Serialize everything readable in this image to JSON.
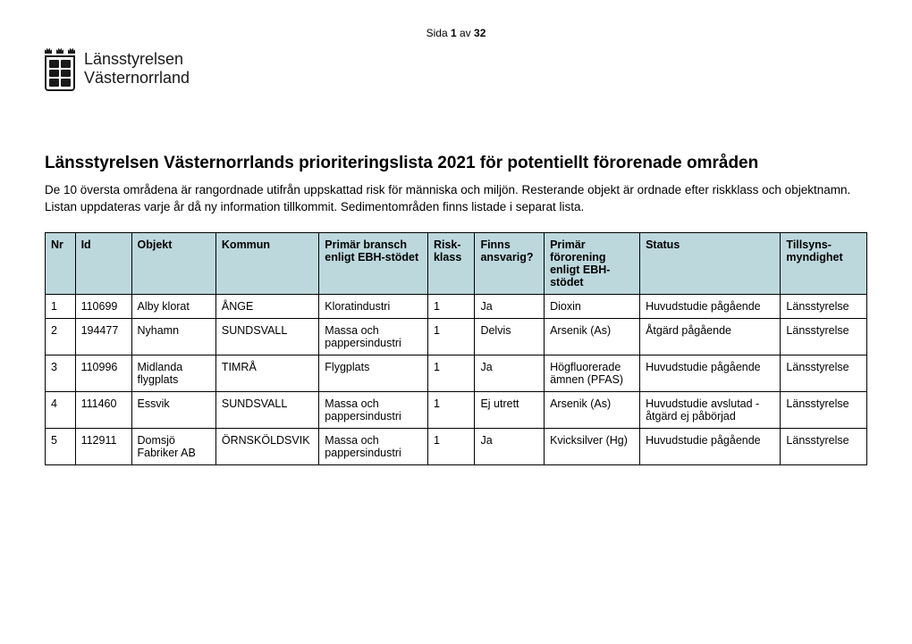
{
  "pagenum": {
    "prefix": "Sida ",
    "current": "1",
    "sep": " av ",
    "total": "32"
  },
  "logo": {
    "line1": "Länsstyrelsen",
    "line2": "Västernorrland"
  },
  "title": "Länsstyrelsen Västernorrlands prioriteringslista 2021 för potentiellt förorenade områden",
  "intro": "De 10 översta områdena är rangordnade utifrån uppskattad risk för människa och miljön. Resterande objekt är ordnade efter riskklass och objektnamn. Listan uppdateras varje år då ny information tillkommit. Sedimentområden finns listade i separat lista.",
  "table": {
    "header_bg": "#bcd8dd",
    "border_color": "#000000",
    "columns": [
      "Nr",
      "Id",
      "Objekt",
      "Kommun",
      "Primär bransch enligt EBH-stödet",
      "Risk-klass",
      "Finns ansvarig?",
      "Primär förorening enligt EBH-stödet",
      "Status",
      "Tillsyns-myndighet"
    ],
    "rows": [
      {
        "nr": "1",
        "id": "110699",
        "objekt": "Alby klorat",
        "kommun": "ÅNGE",
        "bransch": "Kloratindustri",
        "risk": "1",
        "ansvarig": "Ja",
        "fororening": "Dioxin",
        "status": "Huvudstudie pågående",
        "tillsyn": "Länsstyrelse"
      },
      {
        "nr": "2",
        "id": "194477",
        "objekt": "Nyhamn",
        "kommun": "SUNDSVALL",
        "bransch": "Massa och pappersindustri",
        "risk": "1",
        "ansvarig": "Delvis",
        "fororening": "Arsenik (As)",
        "status": "Åtgärd pågående",
        "tillsyn": "Länsstyrelse"
      },
      {
        "nr": "3",
        "id": "110996",
        "objekt": "Midlanda flygplats",
        "kommun": "TIMRÅ",
        "bransch": "Flygplats",
        "risk": "1",
        "ansvarig": "Ja",
        "fororening": "Högfluorerade ämnen (PFAS)",
        "status": "Huvudstudie pågående",
        "tillsyn": "Länsstyrelse"
      },
      {
        "nr": "4",
        "id": "111460",
        "objekt": "Essvik",
        "kommun": "SUNDSVALL",
        "bransch": "Massa och pappersindustri",
        "risk": "1",
        "ansvarig": "Ej utrett",
        "fororening": "Arsenik (As)",
        "status": "Huvudstudie avslutad - åtgärd ej påbörjad",
        "tillsyn": "Länsstyrelse"
      },
      {
        "nr": "5",
        "id": "112911",
        "objekt": "Domsjö Fabriker AB",
        "kommun": "ÖRNSKÖLDSVIK",
        "bransch": "Massa och pappersindustri",
        "risk": "1",
        "ansvarig": "Ja",
        "fororening": "Kvicksilver (Hg)",
        "status": "Huvudstudie pågående",
        "tillsyn": "Länsstyrelse"
      }
    ]
  }
}
